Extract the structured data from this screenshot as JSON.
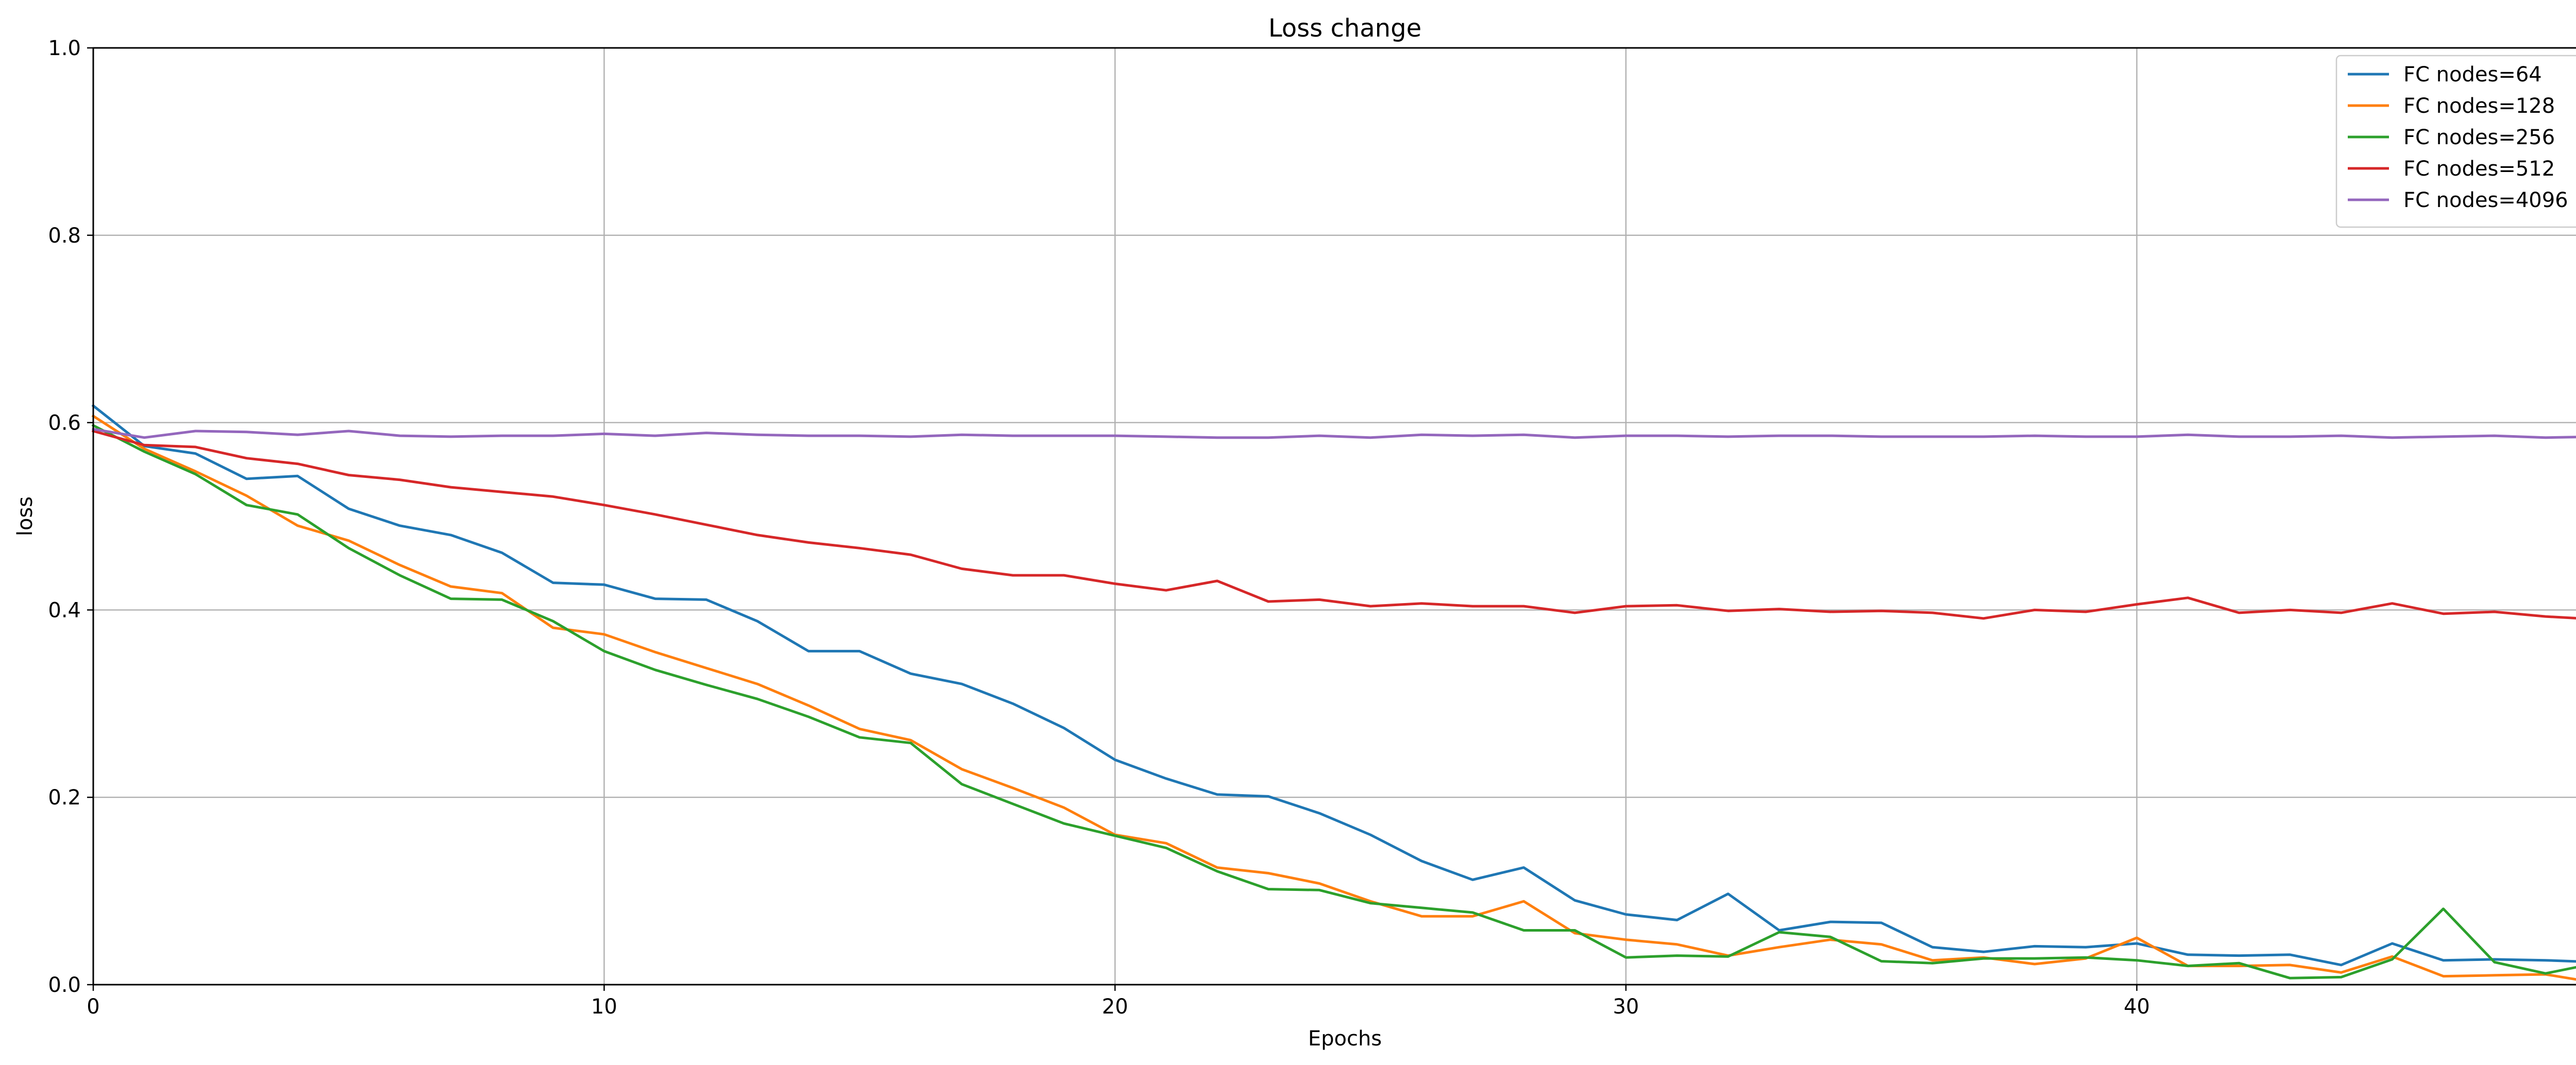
{
  "chart_data": {
    "type": "line",
    "title": "Loss change",
    "xlabel": "Epochs",
    "ylabel": "loss",
    "xlim": [
      0,
      49
    ],
    "ylim": [
      0,
      1.0
    ],
    "xticks": [
      0,
      10,
      20,
      30,
      40
    ],
    "yticks": [
      0.0,
      0.2,
      0.4,
      0.6,
      0.8,
      1.0
    ],
    "grid": true,
    "legend_position": "top-right",
    "x": [
      0,
      1,
      2,
      3,
      4,
      5,
      6,
      7,
      8,
      9,
      10,
      11,
      12,
      13,
      14,
      15,
      16,
      17,
      18,
      19,
      20,
      21,
      22,
      23,
      24,
      25,
      26,
      27,
      28,
      29,
      30,
      31,
      32,
      33,
      34,
      35,
      36,
      37,
      38,
      39,
      40,
      41,
      42,
      43,
      44,
      45,
      46,
      47,
      48,
      49
    ],
    "series": [
      {
        "name": "FC nodes=64",
        "color": "#1f77b4",
        "values": [
          0.618,
          0.575,
          0.567,
          0.54,
          0.543,
          0.508,
          0.49,
          0.48,
          0.461,
          0.429,
          0.427,
          0.412,
          0.411,
          0.388,
          0.356,
          0.356,
          0.332,
          0.321,
          0.3,
          0.274,
          0.24,
          0.22,
          0.203,
          0.201,
          0.183,
          0.16,
          0.132,
          0.112,
          0.125,
          0.09,
          0.075,
          0.069,
          0.097,
          0.058,
          0.067,
          0.066,
          0.04,
          0.035,
          0.041,
          0.04,
          0.044,
          0.032,
          0.031,
          0.032,
          0.021,
          0.044,
          0.026,
          0.027,
          0.026,
          0.024
        ]
      },
      {
        "name": "FC nodes=128",
        "color": "#ff7f0e",
        "values": [
          0.607,
          0.572,
          0.548,
          0.522,
          0.49,
          0.474,
          0.448,
          0.425,
          0.418,
          0.381,
          0.374,
          0.355,
          0.338,
          0.321,
          0.298,
          0.273,
          0.261,
          0.23,
          0.21,
          0.189,
          0.16,
          0.151,
          0.125,
          0.119,
          0.108,
          0.089,
          0.073,
          0.073,
          0.089,
          0.055,
          0.048,
          0.043,
          0.031,
          0.04,
          0.048,
          0.043,
          0.026,
          0.029,
          0.022,
          0.028,
          0.05,
          0.02,
          0.02,
          0.021,
          0.013,
          0.03,
          0.009,
          0.01,
          0.011,
          0.002
        ]
      },
      {
        "name": "FC nodes=256",
        "color": "#2ca02c",
        "values": [
          0.597,
          0.569,
          0.545,
          0.512,
          0.502,
          0.466,
          0.437,
          0.412,
          0.411,
          0.388,
          0.356,
          0.336,
          0.32,
          0.305,
          0.286,
          0.264,
          0.258,
          0.214,
          0.193,
          0.172,
          0.159,
          0.146,
          0.121,
          0.102,
          0.101,
          0.087,
          0.082,
          0.077,
          0.058,
          0.058,
          0.029,
          0.031,
          0.03,
          0.056,
          0.051,
          0.025,
          0.023,
          0.028,
          0.028,
          0.029,
          0.026,
          0.02,
          0.023,
          0.007,
          0.008,
          0.027,
          0.081,
          0.024,
          0.012,
          0.023
        ]
      },
      {
        "name": "FC nodes=512",
        "color": "#d62728",
        "values": [
          0.591,
          0.576,
          0.574,
          0.562,
          0.556,
          0.544,
          0.539,
          0.531,
          0.526,
          0.521,
          0.512,
          0.502,
          0.491,
          0.48,
          0.472,
          0.466,
          0.459,
          0.444,
          0.437,
          0.437,
          0.428,
          0.421,
          0.431,
          0.409,
          0.411,
          0.404,
          0.407,
          0.404,
          0.404,
          0.397,
          0.404,
          0.405,
          0.399,
          0.401,
          0.398,
          0.399,
          0.397,
          0.391,
          0.4,
          0.398,
          0.406,
          0.413,
          0.397,
          0.4,
          0.397,
          0.407,
          0.396,
          0.398,
          0.393,
          0.39
        ]
      },
      {
        "name": "FC nodes=4096",
        "color": "#9467bd",
        "values": [
          0.593,
          0.584,
          0.591,
          0.59,
          0.587,
          0.591,
          0.586,
          0.585,
          0.586,
          0.586,
          0.588,
          0.586,
          0.589,
          0.587,
          0.586,
          0.586,
          0.585,
          0.587,
          0.586,
          0.586,
          0.586,
          0.585,
          0.584,
          0.584,
          0.586,
          0.584,
          0.587,
          0.586,
          0.587,
          0.584,
          0.586,
          0.586,
          0.585,
          0.586,
          0.586,
          0.585,
          0.585,
          0.585,
          0.586,
          0.585,
          0.585,
          0.587,
          0.585,
          0.585,
          0.586,
          0.584,
          0.585,
          0.586,
          0.584,
          0.585
        ]
      }
    ]
  }
}
